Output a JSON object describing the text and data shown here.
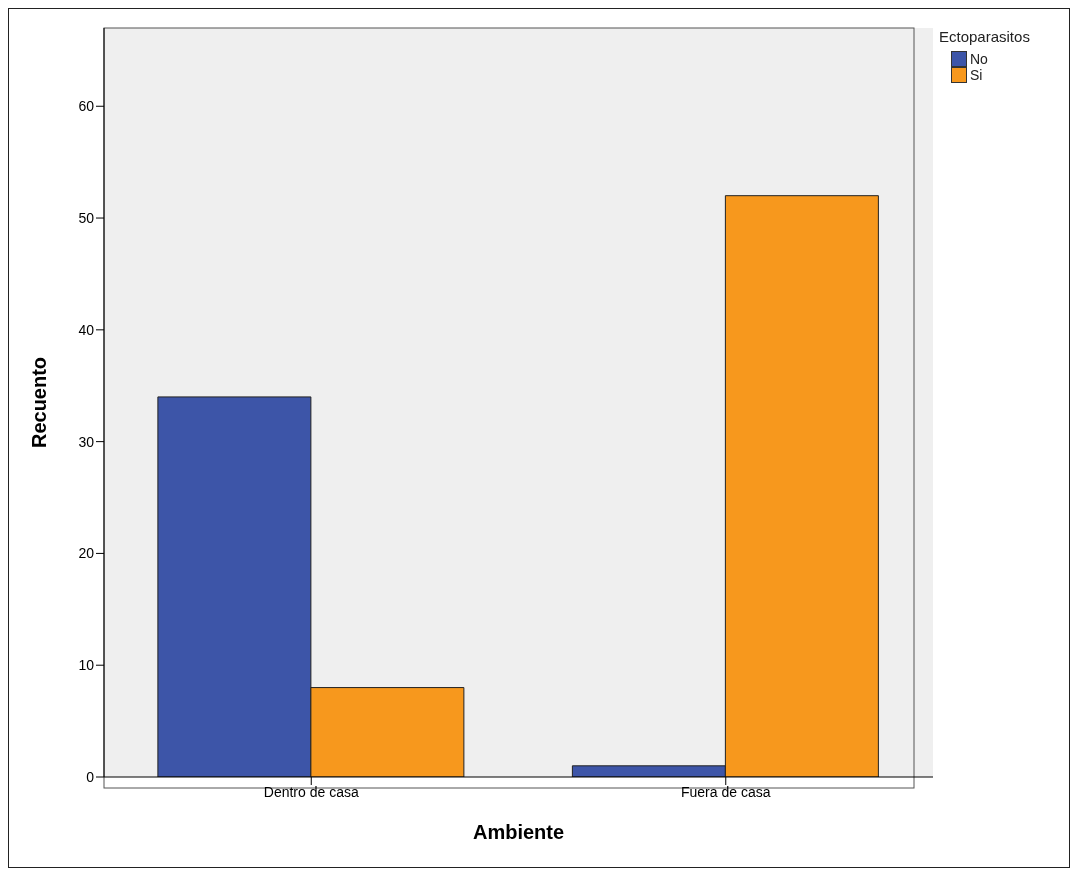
{
  "chart_data": {
    "type": "bar",
    "xlabel": "Ambiente",
    "ylabel": "Recuento",
    "legend_title": "Ectoparasitos",
    "categories": [
      "Dentro de casa",
      "Fuera de casa"
    ],
    "series": [
      {
        "name": "No",
        "color": "#3d55a8",
        "values": [
          34,
          1
        ]
      },
      {
        "name": "Si",
        "color": "#f7981d",
        "values": [
          8,
          52
        ]
      }
    ],
    "ylim": [
      0,
      67
    ],
    "yticks": [
      0,
      10,
      20,
      30,
      40,
      50,
      60
    ],
    "grid": false,
    "legend": "top right"
  }
}
